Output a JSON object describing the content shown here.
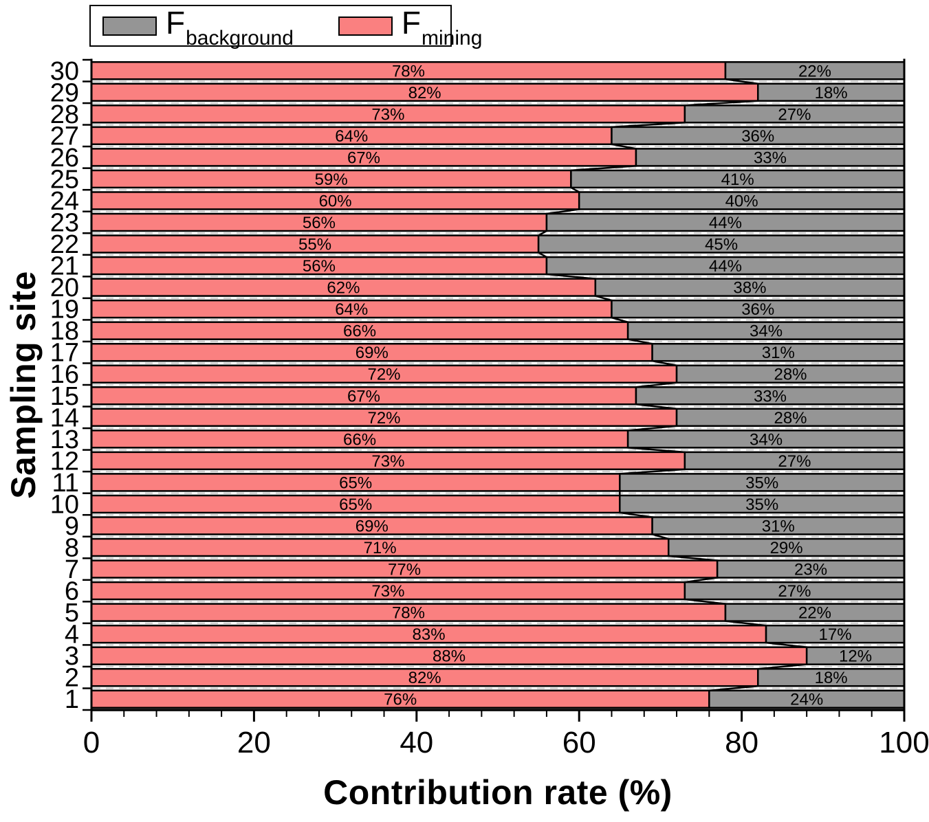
{
  "legend": {
    "entries": [
      {
        "name": "F_background",
        "base": "F",
        "sub": "background",
        "color": "#959595"
      },
      {
        "name": "F_mining",
        "base": "F",
        "sub": "mining",
        "color": "#FA8080"
      }
    ]
  },
  "chart_data": {
    "type": "bar",
    "orientation": "horizontal",
    "stacked": true,
    "title": "",
    "xlabel": "Contribution rate (%)",
    "ylabel": "Sampling site",
    "xlim": [
      0,
      100
    ],
    "x_major_ticks": [
      0,
      20,
      40,
      60,
      80,
      100
    ],
    "x_minor_step": 4,
    "grid": "dashed horizontal lines between bars",
    "legend_position": "top-left",
    "bar_label_format": "percent",
    "categories_top_to_bottom": [
      "30",
      "29",
      "28",
      "27",
      "26",
      "25",
      "24",
      "23",
      "22",
      "21",
      "20",
      "19",
      "18",
      "17",
      "16",
      "15",
      "14",
      "13",
      "12",
      "11",
      "10",
      "9",
      "8",
      "7",
      "6",
      "5",
      "4",
      "3",
      "2",
      "1"
    ],
    "series": [
      {
        "name": "F_mining",
        "color": "#FA8080",
        "values": [
          78,
          82,
          73,
          64,
          67,
          59,
          60,
          56,
          55,
          56,
          62,
          64,
          66,
          69,
          72,
          67,
          72,
          66,
          73,
          65,
          65,
          69,
          71,
          77,
          73,
          78,
          83,
          88,
          82,
          76
        ]
      },
      {
        "name": "F_background",
        "color": "#959595",
        "values": [
          22,
          18,
          27,
          36,
          33,
          41,
          40,
          44,
          45,
          44,
          38,
          36,
          34,
          31,
          28,
          33,
          28,
          34,
          27,
          35,
          35,
          31,
          29,
          23,
          27,
          22,
          17,
          12,
          18,
          24
        ]
      }
    ]
  }
}
